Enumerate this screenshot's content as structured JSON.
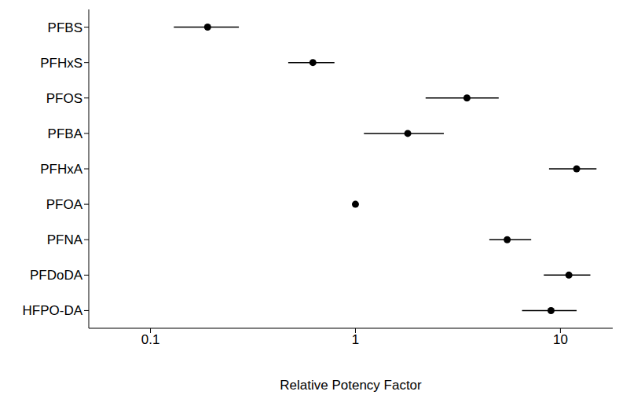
{
  "chart_data": {
    "type": "scatter",
    "x_label": "Relative Potency Factor",
    "categories": [
      "PFBS",
      "PFHxS",
      "PFOS",
      "PFBA",
      "PFHxA",
      "PFOA",
      "PFNA",
      "PFDoDA",
      "HFPO-DA"
    ],
    "values": [
      0.19,
      0.62,
      3.5,
      1.8,
      12,
      1,
      5.5,
      11,
      9
    ],
    "ci_low": [
      0.13,
      0.47,
      2.2,
      1.1,
      8.8,
      1,
      4.5,
      8.3,
      6.5
    ],
    "ci_high": [
      0.27,
      0.79,
      5.0,
      2.7,
      15,
      1,
      7.2,
      14,
      12
    ],
    "color": "#000000",
    "xlim": [
      0.05,
      18
    ],
    "xticks": [
      0.1,
      1,
      10
    ],
    "log": "x",
    "grid": false,
    "marker": "circle"
  }
}
